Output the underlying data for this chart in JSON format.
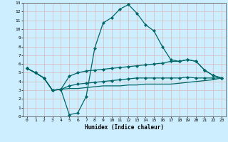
{
  "xlabel": "Humidex (Indice chaleur)",
  "ylabel": "",
  "bg_color": "#cceeff",
  "grid_color": "#ddaaaa",
  "line_color": "#006666",
  "xlim": [
    -0.5,
    23.5
  ],
  "ylim": [
    0,
    13
  ],
  "xticks": [
    0,
    1,
    2,
    3,
    4,
    5,
    6,
    7,
    8,
    9,
    10,
    11,
    12,
    13,
    14,
    15,
    16,
    17,
    18,
    19,
    20,
    21,
    22,
    23
  ],
  "yticks": [
    0,
    1,
    2,
    3,
    4,
    5,
    6,
    7,
    8,
    9,
    10,
    11,
    12,
    13
  ],
  "series": [
    {
      "x": [
        0,
        1,
        2,
        3,
        4,
        5,
        6,
        7,
        8,
        9,
        10,
        11,
        12,
        13,
        14,
        15,
        16,
        17,
        18,
        19,
        20,
        21,
        22,
        23
      ],
      "y": [
        5.5,
        5.0,
        4.4,
        3.0,
        3.1,
        0.2,
        0.4,
        2.3,
        7.8,
        10.7,
        11.3,
        12.3,
        12.8,
        11.8,
        10.5,
        9.8,
        8.0,
        6.5,
        6.3,
        6.5,
        6.3,
        5.3,
        4.7,
        4.4
      ],
      "marker": "D",
      "markersize": 2.2,
      "linewidth": 0.9
    },
    {
      "x": [
        0,
        1,
        2,
        3,
        4,
        5,
        6,
        7,
        8,
        9,
        10,
        11,
        12,
        13,
        14,
        15,
        16,
        17,
        18,
        19,
        20,
        21,
        22,
        23
      ],
      "y": [
        5.5,
        5.0,
        4.4,
        3.0,
        3.1,
        4.6,
        5.0,
        5.2,
        5.3,
        5.4,
        5.5,
        5.6,
        5.7,
        5.8,
        5.9,
        6.0,
        6.1,
        6.3,
        6.3,
        6.5,
        6.3,
        5.3,
        4.7,
        4.4
      ],
      "marker": "D",
      "markersize": 2.2,
      "linewidth": 0.9
    },
    {
      "x": [
        0,
        1,
        2,
        3,
        4,
        5,
        6,
        7,
        8,
        9,
        10,
        11,
        12,
        13,
        14,
        15,
        16,
        17,
        18,
        19,
        20,
        21,
        22,
        23
      ],
      "y": [
        5.5,
        5.0,
        4.4,
        3.0,
        3.1,
        3.5,
        3.7,
        3.8,
        3.9,
        4.0,
        4.1,
        4.2,
        4.3,
        4.4,
        4.4,
        4.4,
        4.4,
        4.4,
        4.4,
        4.5,
        4.4,
        4.4,
        4.4,
        4.4
      ],
      "marker": "D",
      "markersize": 2.2,
      "linewidth": 0.9
    },
    {
      "x": [
        0,
        1,
        2,
        3,
        4,
        5,
        6,
        7,
        8,
        9,
        10,
        11,
        12,
        13,
        14,
        15,
        16,
        17,
        18,
        19,
        20,
        21,
        22,
        23
      ],
      "y": [
        5.5,
        5.0,
        4.4,
        3.0,
        3.1,
        3.2,
        3.2,
        3.3,
        3.4,
        3.5,
        3.5,
        3.5,
        3.6,
        3.6,
        3.7,
        3.7,
        3.7,
        3.7,
        3.8,
        3.9,
        4.0,
        4.1,
        4.2,
        4.4
      ],
      "marker": null,
      "markersize": 0,
      "linewidth": 0.9
    }
  ]
}
